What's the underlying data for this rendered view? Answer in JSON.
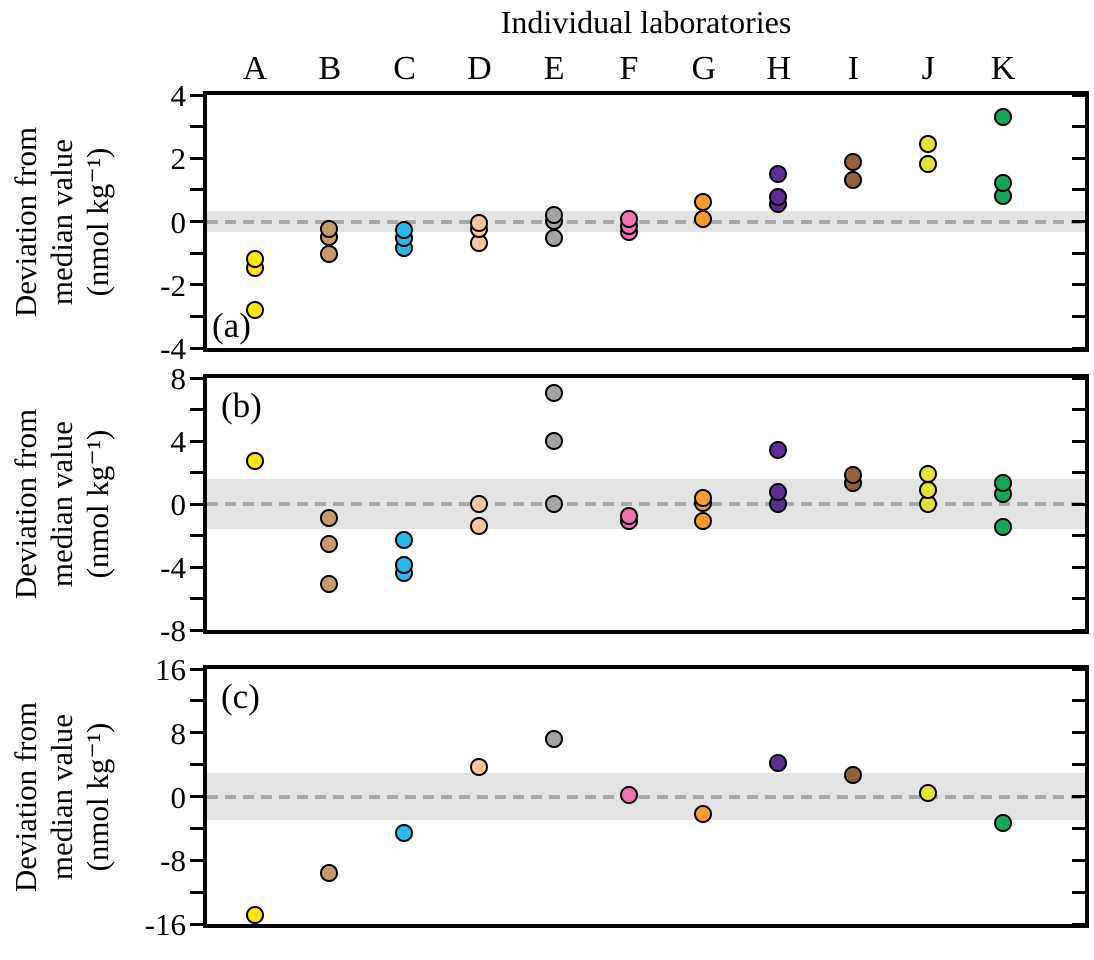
{
  "title": "Individual laboratories",
  "y_axis_label_lines": [
    "Deviation from",
    "median value",
    "(nmol kg⁻¹)"
  ],
  "chart_data": {
    "type": "scatter",
    "x_categories": [
      "A",
      "B",
      "C",
      "D",
      "E",
      "F",
      "G",
      "H",
      "I",
      "J",
      "K"
    ],
    "category_colors": {
      "A": "#ffe70d",
      "B": "#c59a6e",
      "C": "#2bb8ea",
      "D": "#f9c79f",
      "E": "#a4a4a4",
      "F": "#f173ae",
      "G": "#f99b2d",
      "H": "#5b2e90",
      "I": "#92613c",
      "J": "#dfe436",
      "K": "#16a65c"
    },
    "marker_outline_color": "#000000",
    "median_band_color": "#e3e3e3",
    "zero_line_color": "#a8a8a8",
    "zero_line_style": "dashed",
    "grid": "off",
    "legend": "none",
    "ylabel": "Deviation from median value (nmol kg⁻¹)",
    "panels": [
      {
        "label": "(a)",
        "label_corner": "bottom-left",
        "ylim": [
          -4,
          4
        ],
        "major_ticks": [
          4,
          2,
          0,
          -2,
          -4
        ],
        "minor_ticks": [
          3,
          1,
          -1,
          -3
        ],
        "median_band_halfwidth": 0.33,
        "points": {
          "A": [
            -1.2,
            -1.5,
            -2.8
          ],
          "B": [
            -0.25,
            -0.5,
            -1.05
          ],
          "C": [
            -0.3,
            -0.55,
            -0.85
          ],
          "D": [
            -0.05,
            -0.25,
            -0.7
          ],
          "E": [
            0.2,
            0.0,
            -0.55
          ],
          "F": [
            0.05,
            -0.15,
            -0.35
          ],
          "G": [
            0.6,
            0.05
          ],
          "H": [
            1.5,
            0.75,
            0.55
          ],
          "I": [
            1.85,
            1.3
          ],
          "J": [
            2.45,
            1.8
          ],
          "K": [
            3.3,
            1.2,
            0.8
          ]
        }
      },
      {
        "label": "(b)",
        "label_corner": "top-left",
        "ylim": [
          -8,
          8
        ],
        "major_ticks": [
          8,
          4,
          0,
          -4,
          -8
        ],
        "minor_ticks": [
          6,
          2,
          -2,
          -6
        ],
        "median_band_halfwidth": 1.6,
        "points": {
          "A": [
            2.7
          ],
          "B": [
            -0.9,
            -2.6,
            -5.1
          ],
          "C": [
            -2.3,
            -3.9,
            -4.4
          ],
          "D": [
            0.0,
            -1.4
          ],
          "E": [
            7.0,
            4.0,
            0.0
          ],
          "F": [
            -0.8,
            -1.1
          ],
          "G": [
            0.35,
            0.05,
            -1.1
          ],
          "H": [
            3.4,
            0.7,
            0.0
          ],
          "I": [
            1.8,
            1.3
          ],
          "J": [
            1.85,
            0.85,
            0.0
          ],
          "K": [
            1.3,
            0.6,
            -1.5
          ]
        }
      },
      {
        "label": "(c)",
        "label_corner": "top-left",
        "ylim": [
          -16,
          16
        ],
        "major_ticks": [
          16,
          8,
          0,
          -8,
          -16
        ],
        "minor_ticks": [
          12,
          4,
          -4,
          -12
        ],
        "median_band_halfwidth": 3.0,
        "points": {
          "A": [
            -14.9
          ],
          "B": [
            -9.7
          ],
          "C": [
            -4.7
          ],
          "D": [
            3.7
          ],
          "E": [
            7.1
          ],
          "F": [
            0.1
          ],
          "G": [
            -2.2
          ],
          "H": [
            4.2
          ],
          "I": [
            2.6
          ],
          "J": [
            0.4
          ],
          "K": [
            -3.4
          ]
        }
      }
    ]
  }
}
